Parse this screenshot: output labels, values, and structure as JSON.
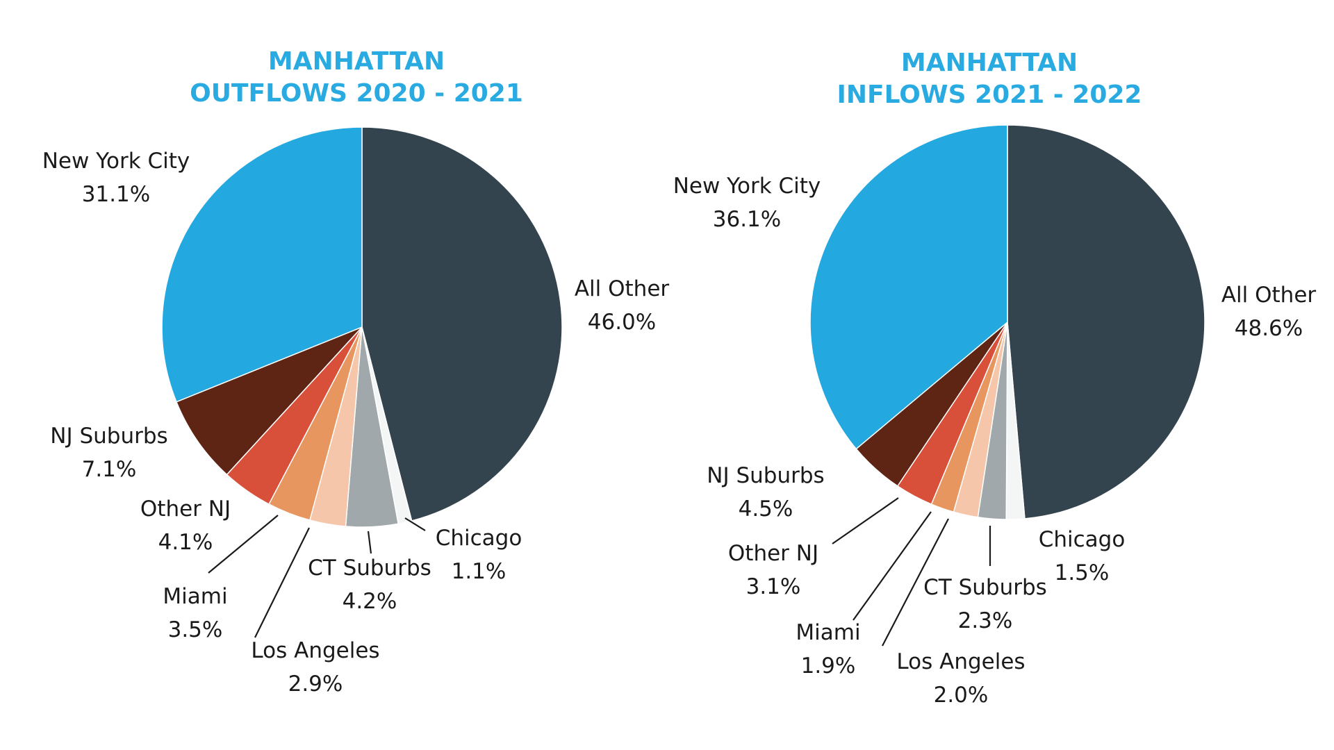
{
  "colors": {
    "title": "#29ABE2",
    "label": "#1a1a1a",
    "slice_edge": "#ffffff"
  },
  "chart_data": [
    {
      "type": "pie",
      "title": [
        "MANHATTAN",
        "OUTFLOWS 2020 - 2021"
      ],
      "slices": [
        {
          "label": "All Other",
          "value": 46.0,
          "display": "46.0%",
          "color": "#34444F"
        },
        {
          "label": "Chicago",
          "value": 1.1,
          "display": "1.1%",
          "color": "#F4F6F6"
        },
        {
          "label": "CT Suburbs",
          "value": 4.2,
          "display": "4.2%",
          "color": "#A1A8AB"
        },
        {
          "label": "Los Angeles",
          "value": 2.9,
          "display": "2.9%",
          "color": "#F5C6AA"
        },
        {
          "label": "Miami",
          "value": 3.5,
          "display": "3.5%",
          "color": "#E6965E"
        },
        {
          "label": "Other NJ",
          "value": 4.1,
          "display": "4.1%",
          "color": "#D8503A"
        },
        {
          "label": "NJ Suburbs",
          "value": 7.1,
          "display": "7.1%",
          "color": "#5E2414"
        },
        {
          "label": "New York City",
          "value": 31.1,
          "display": "31.1%",
          "color": "#23A8E0"
        }
      ]
    },
    {
      "type": "pie",
      "title": [
        "MANHATTAN",
        "INFLOWS 2021 - 2022"
      ],
      "slices": [
        {
          "label": "All Other",
          "value": 48.6,
          "display": "48.6%",
          "color": "#34444F"
        },
        {
          "label": "Chicago",
          "value": 1.5,
          "display": "1.5%",
          "color": "#F4F6F6"
        },
        {
          "label": "CT Suburbs",
          "value": 2.3,
          "display": "2.3%",
          "color": "#A1A8AB"
        },
        {
          "label": "Los Angeles",
          "value": 2.0,
          "display": "2.0%",
          "color": "#F5C6AA"
        },
        {
          "label": "Miami",
          "value": 1.9,
          "display": "1.9%",
          "color": "#E6965E"
        },
        {
          "label": "Other NJ",
          "value": 3.1,
          "display": "3.1%",
          "color": "#D8503A"
        },
        {
          "label": "NJ Suburbs",
          "value": 4.5,
          "display": "4.5%",
          "color": "#5E2414"
        },
        {
          "label": "New York City",
          "value": 36.1,
          "display": "36.1%",
          "color": "#23A8E0"
        }
      ]
    }
  ]
}
